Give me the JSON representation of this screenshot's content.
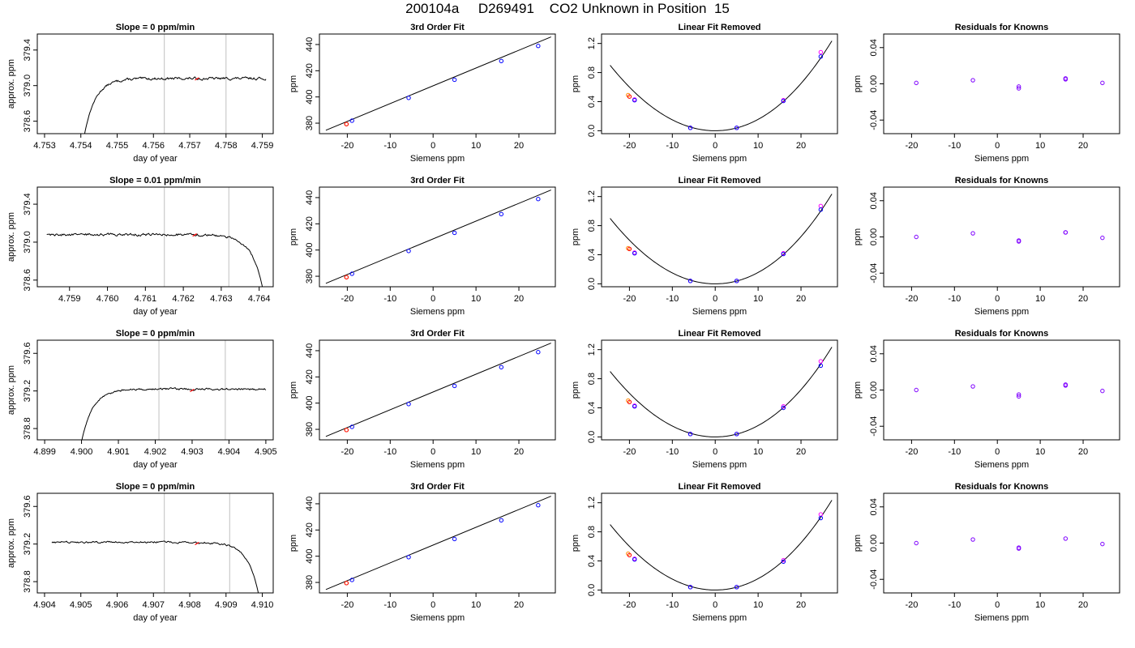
{
  "page_title": "200104a     D269491    CO2 Unknown in Position  15",
  "colors": {
    "trace": "#000000",
    "fit_line": "#000000",
    "vline": "#c0c0c0",
    "known_blue": "#0000ff",
    "known_magenta": "#ff00ff",
    "unknown_red": "#ff0000",
    "unknown_orange": "#ff8c00",
    "residual_purple": "#7f00ff"
  },
  "chart_data": [
    {
      "type": "line",
      "row": 1,
      "col": 1,
      "title": "Slope =  0  ppm/min",
      "xlabel": "day of year",
      "ylabel": "approx. ppm",
      "xlim": [
        4.7528,
        4.7593
      ],
      "ylim": [
        378.46,
        379.58
      ],
      "xticks": [
        4.753,
        4.754,
        4.755,
        4.756,
        4.757,
        4.758,
        4.759
      ],
      "xticklabels": [
        "4.753",
        "4.754",
        "4.755",
        "4.756",
        "4.757",
        "4.758",
        "4.759"
      ],
      "yticks": [
        378.6,
        379.0,
        379.4
      ],
      "yticklabels": [
        "378.6",
        "379.0",
        "379.4"
      ],
      "vlines": [
        4.7563,
        4.758
      ],
      "trace": {
        "mode": "rise",
        "x_start": 4.7541,
        "x_end": 4.7591,
        "y_start": 378.45,
        "level": 379.08,
        "jump": 0.0003,
        "noise": 0.016
      },
      "marker": {
        "x": 4.7572,
        "y": 379.08
      }
    },
    {
      "type": "scatter",
      "row": 1,
      "col": 2,
      "title": "3rd Order Fit",
      "xlabel": "Siemens ppm",
      "ylabel": "ppm",
      "xlim": [
        -26.5,
        28.5
      ],
      "ylim": [
        372,
        448
      ],
      "xticks": [
        -20,
        -10,
        0,
        10,
        20
      ],
      "xticklabels": [
        "-20",
        "-10",
        "0",
        "10",
        "20"
      ],
      "yticks": [
        380,
        400,
        420,
        440
      ],
      "yticklabels": [
        "380",
        "400",
        "420",
        "440"
      ],
      "line": {
        "x": [
          -25,
          27.5
        ],
        "y": [
          374.6,
          445.8
        ]
      },
      "knowns": {
        "x": [
          -18.9,
          -5.7,
          5.0,
          15.9,
          24.5
        ],
        "y": [
          381.9,
          399.3,
          413.1,
          427.4,
          438.9
        ]
      },
      "unknowns": {
        "x": [
          -20.2,
          -20.2
        ],
        "y": [
          379.3,
          379.3
        ]
      }
    },
    {
      "type": "scatter",
      "row": 1,
      "col": 3,
      "title": "Linear Fit Removed",
      "xlabel": "Siemens ppm",
      "ylabel": "ppm",
      "xlim": [
        -26.5,
        28.5
      ],
      "ylim": [
        -0.04,
        1.33
      ],
      "xticks": [
        -20,
        -10,
        0,
        10,
        20
      ],
      "xticklabels": [
        "-20",
        "-10",
        "0",
        "10",
        "20"
      ],
      "yticks": [
        0.0,
        0.4,
        0.8,
        1.2
      ],
      "yticklabels": [
        "0.0",
        "0.4",
        "0.8",
        "1.2"
      ],
      "curve": {
        "a": 0.0015,
        "b": 0.00156,
        "c": 0.0,
        "x0": -24.5,
        "x1": 27.2
      },
      "knowns_blue": {
        "x": [
          -18.8,
          -5.8,
          5.0,
          15.9,
          24.6
        ],
        "y": [
          0.42,
          0.04,
          0.04,
          0.41,
          1.02
        ]
      },
      "knowns_magenta": {
        "x": [
          -18.8,
          -5.8,
          5.0,
          15.9,
          24.6
        ],
        "y": [
          0.43,
          0.04,
          0.04,
          0.42,
          1.08
        ]
      },
      "unknowns": {
        "x": [
          -20.3,
          -20.0
        ],
        "y": [
          0.49,
          0.47
        ]
      }
    },
    {
      "type": "scatter",
      "row": 1,
      "col": 4,
      "title": "Residuals for Knowns",
      "xlabel": "Siemens ppm",
      "ylabel": "ppm",
      "xlim": [
        -26.5,
        28.5
      ],
      "ylim": [
        -0.055,
        0.055
      ],
      "xticks": [
        -20,
        -10,
        0,
        10,
        20
      ],
      "xticklabels": [
        "-20",
        "-10",
        "0",
        "10",
        "20"
      ],
      "yticks": [
        -0.04,
        0.0,
        0.04
      ],
      "yticklabels": [
        "-0.04",
        "0.00",
        "0.04"
      ],
      "points": {
        "x": [
          -18.9,
          -5.7,
          5.0,
          5.0,
          15.9,
          15.9,
          24.5
        ],
        "y": [
          0.001,
          0.004,
          -0.003,
          -0.005,
          0.005,
          0.006,
          0.001
        ]
      }
    },
    {
      "type": "line",
      "row": 2,
      "col": 1,
      "title": "Slope =  0.01  ppm/min",
      "xlabel": "day of year",
      "ylabel": "approx. ppm",
      "xlim": [
        4.75815,
        4.76437
      ],
      "ylim": [
        378.53,
        379.58
      ],
      "xticks": [
        4.759,
        4.76,
        4.761,
        4.762,
        4.763,
        4.764
      ],
      "xticklabels": [
        "4.759",
        "4.760",
        "4.761",
        "4.762",
        "4.763",
        "4.764"
      ],
      "yticks": [
        378.6,
        379.0,
        379.4
      ],
      "yticklabels": [
        "378.6",
        "379.0",
        "379.4"
      ],
      "vlines": [
        4.7615,
        4.7632
      ],
      "trace": {
        "mode": "fall",
        "x_start": 4.7584,
        "x_end": 4.7641,
        "y_end": 378.5,
        "level": 379.08,
        "jump": 0.0003,
        "noise": 0.016
      },
      "marker": {
        "x": 4.7623,
        "y": 379.08
      }
    },
    {
      "type": "scatter",
      "row": 2,
      "col": 2,
      "title": "3rd Order Fit",
      "xlabel": "Siemens ppm",
      "ylabel": "ppm",
      "xlim": [
        -26.5,
        28.5
      ],
      "ylim": [
        372,
        448
      ],
      "xticks": [
        -20,
        -10,
        0,
        10,
        20
      ],
      "xticklabels": [
        "-20",
        "-10",
        "0",
        "10",
        "20"
      ],
      "yticks": [
        380,
        400,
        420,
        440
      ],
      "yticklabels": [
        "380",
        "400",
        "420",
        "440"
      ],
      "line": {
        "x": [
          -25,
          27.5
        ],
        "y": [
          374.6,
          445.8
        ]
      },
      "knowns": {
        "x": [
          -18.9,
          -5.7,
          5.0,
          15.9,
          24.5
        ],
        "y": [
          381.9,
          399.3,
          413.1,
          427.4,
          438.9
        ]
      },
      "unknowns": {
        "x": [
          -20.2,
          -20.2
        ],
        "y": [
          379.3,
          379.3
        ]
      }
    },
    {
      "type": "scatter",
      "row": 2,
      "col": 3,
      "title": "Linear Fit Removed",
      "xlabel": "Siemens ppm",
      "ylabel": "ppm",
      "xlim": [
        -26.5,
        28.5
      ],
      "ylim": [
        -0.04,
        1.33
      ],
      "xticks": [
        -20,
        -10,
        0,
        10,
        20
      ],
      "xticklabels": [
        "-20",
        "-10",
        "0",
        "10",
        "20"
      ],
      "yticks": [
        0.0,
        0.4,
        0.8,
        1.2
      ],
      "yticklabels": [
        "0.0",
        "0.4",
        "0.8",
        "1.2"
      ],
      "curve": {
        "a": 0.0015,
        "b": 0.00156,
        "c": 0.0,
        "x0": -24.5,
        "x1": 27.2
      },
      "knowns_blue": {
        "x": [
          -18.8,
          -5.8,
          5.0,
          15.9,
          24.6
        ],
        "y": [
          0.42,
          0.04,
          0.04,
          0.41,
          1.02
        ]
      },
      "knowns_magenta": {
        "x": [
          -18.8,
          -5.8,
          5.0,
          15.9,
          24.6
        ],
        "y": [
          0.43,
          0.04,
          0.04,
          0.42,
          1.07
        ]
      },
      "unknowns": {
        "x": [
          -20.3,
          -20.0
        ],
        "y": [
          0.49,
          0.48
        ]
      }
    },
    {
      "type": "scatter",
      "row": 2,
      "col": 4,
      "title": "Residuals for Knowns",
      "xlabel": "Siemens ppm",
      "ylabel": "ppm",
      "xlim": [
        -26.5,
        28.5
      ],
      "ylim": [
        -0.055,
        0.055
      ],
      "xticks": [
        -20,
        -10,
        0,
        10,
        20
      ],
      "xticklabels": [
        "-20",
        "-10",
        "0",
        "10",
        "20"
      ],
      "yticks": [
        -0.04,
        0.0,
        0.04
      ],
      "yticklabels": [
        "-0.04",
        "0.00",
        "0.04"
      ],
      "points": {
        "x": [
          -18.9,
          -5.7,
          5.0,
          5.0,
          15.9,
          15.9,
          24.5
        ],
        "y": [
          0.0,
          0.004,
          -0.004,
          -0.005,
          0.005,
          0.005,
          -0.001
        ]
      }
    },
    {
      "type": "line",
      "row": 3,
      "col": 1,
      "title": "Slope =  0  ppm/min",
      "xlabel": "day of year",
      "ylabel": "approx. ppm",
      "xlim": [
        4.8988,
        4.9052
      ],
      "ylim": [
        378.68,
        379.74
      ],
      "xticks": [
        4.899,
        4.9,
        4.901,
        4.902,
        4.903,
        4.904,
        4.905
      ],
      "xticklabels": [
        "4.899",
        "4.900",
        "4.901",
        "4.902",
        "4.903",
        "4.904",
        "4.905"
      ],
      "yticks": [
        378.8,
        379.2,
        379.6
      ],
      "yticklabels": [
        "378.8",
        "379.2",
        "379.6"
      ],
      "vlines": [
        4.9021,
        4.9039
      ],
      "trace": {
        "mode": "rise",
        "x_start": 4.9,
        "x_end": 4.905,
        "y_start": 378.66,
        "level": 379.22,
        "jump": 0.0003,
        "noise": 0.012
      },
      "marker": {
        "x": 4.903,
        "y": 379.21
      }
    },
    {
      "type": "scatter",
      "row": 3,
      "col": 2,
      "title": "3rd Order Fit",
      "xlabel": "Siemens ppm",
      "ylabel": "ppm",
      "xlim": [
        -26.5,
        28.5
      ],
      "ylim": [
        372,
        448
      ],
      "xticks": [
        -20,
        -10,
        0,
        10,
        20
      ],
      "xticklabels": [
        "-20",
        "-10",
        "0",
        "10",
        "20"
      ],
      "yticks": [
        380,
        400,
        420,
        440
      ],
      "yticklabels": [
        "380",
        "400",
        "420",
        "440"
      ],
      "line": {
        "x": [
          -25,
          27.5
        ],
        "y": [
          374.6,
          445.8
        ]
      },
      "knowns": {
        "x": [
          -18.9,
          -5.7,
          5.0,
          15.9,
          24.5
        ],
        "y": [
          381.9,
          399.3,
          413.1,
          427.4,
          438.9
        ]
      },
      "unknowns": {
        "x": [
          -20.2,
          -20.2
        ],
        "y": [
          379.5,
          379.5
        ]
      }
    },
    {
      "type": "scatter",
      "row": 3,
      "col": 3,
      "title": "Linear Fit Removed",
      "xlabel": "Siemens ppm",
      "ylabel": "ppm",
      "xlim": [
        -26.5,
        28.5
      ],
      "ylim": [
        -0.04,
        1.33
      ],
      "xticks": [
        -20,
        -10,
        0,
        10,
        20
      ],
      "xticklabels": [
        "-20",
        "-10",
        "0",
        "10",
        "20"
      ],
      "yticks": [
        0.0,
        0.4,
        0.8,
        1.2
      ],
      "yticklabels": [
        "0.0",
        "0.4",
        "0.8",
        "1.2"
      ],
      "curve": {
        "a": 0.0015,
        "b": 0.00156,
        "c": 0.0,
        "x0": -24.5,
        "x1": 27.2
      },
      "knowns_blue": {
        "x": [
          -18.8,
          -5.8,
          5.0,
          15.9,
          24.6
        ],
        "y": [
          0.42,
          0.04,
          0.04,
          0.4,
          0.98
        ]
      },
      "knowns_magenta": {
        "x": [
          -18.8,
          -5.8,
          5.0,
          15.9,
          24.6
        ],
        "y": [
          0.43,
          0.04,
          0.04,
          0.42,
          1.04
        ]
      },
      "unknowns": {
        "x": [
          -20.3,
          -20.0
        ],
        "y": [
          0.5,
          0.48
        ]
      }
    },
    {
      "type": "scatter",
      "row": 3,
      "col": 4,
      "title": "Residuals for Knowns",
      "xlabel": "Siemens ppm",
      "ylabel": "ppm",
      "xlim": [
        -26.5,
        28.5
      ],
      "ylim": [
        -0.055,
        0.055
      ],
      "xticks": [
        -20,
        -10,
        0,
        10,
        20
      ],
      "xticklabels": [
        "-20",
        "-10",
        "0",
        "10",
        "20"
      ],
      "yticks": [
        -0.04,
        0.0,
        0.04
      ],
      "yticklabels": [
        "-0.04",
        "0.00",
        "0.04"
      ],
      "points": {
        "x": [
          -18.9,
          -5.7,
          5.0,
          5.0,
          15.9,
          15.9,
          24.5
        ],
        "y": [
          0.0,
          0.004,
          -0.005,
          -0.007,
          0.005,
          0.006,
          -0.001
        ]
      }
    },
    {
      "type": "line",
      "row": 4,
      "col": 1,
      "title": "Slope =  0  ppm/min",
      "xlabel": "day of year",
      "ylabel": "approx. ppm",
      "xlim": [
        4.9038,
        4.9103
      ],
      "ylim": [
        378.68,
        379.74
      ],
      "xticks": [
        4.904,
        4.905,
        4.906,
        4.907,
        4.908,
        4.909,
        4.91
      ],
      "xticklabels": [
        "4.904",
        "4.905",
        "4.906",
        "4.907",
        "4.908",
        "4.909",
        "4.910"
      ],
      "yticks": [
        378.8,
        379.2,
        379.6
      ],
      "yticklabels": [
        "378.8",
        "379.2",
        "379.6"
      ],
      "vlines": [
        4.9073,
        4.9091
      ],
      "trace": {
        "mode": "fall",
        "x_start": 4.9042,
        "x_end": 4.9099,
        "y_end": 378.66,
        "level": 379.22,
        "jump": 0.0003,
        "noise": 0.012
      },
      "marker": {
        "x": 4.9082,
        "y": 379.21
      }
    },
    {
      "type": "scatter",
      "row": 4,
      "col": 2,
      "title": "3rd Order Fit",
      "xlabel": "Siemens ppm",
      "ylabel": "ppm",
      "xlim": [
        -26.5,
        28.5
      ],
      "ylim": [
        372,
        448
      ],
      "xticks": [
        -20,
        -10,
        0,
        10,
        20
      ],
      "xticklabels": [
        "-20",
        "-10",
        "0",
        "10",
        "20"
      ],
      "yticks": [
        380,
        400,
        420,
        440
      ],
      "yticklabels": [
        "380",
        "400",
        "420",
        "440"
      ],
      "line": {
        "x": [
          -25,
          27.5
        ],
        "y": [
          374.6,
          445.8
        ]
      },
      "knowns": {
        "x": [
          -18.9,
          -5.7,
          5.0,
          15.9,
          24.5
        ],
        "y": [
          381.9,
          399.3,
          413.1,
          427.4,
          438.9
        ]
      },
      "unknowns": {
        "x": [
          -20.2,
          -20.2
        ],
        "y": [
          379.5,
          379.5
        ]
      }
    },
    {
      "type": "scatter",
      "row": 4,
      "col": 3,
      "title": "Linear Fit Removed",
      "xlabel": "Siemens ppm",
      "ylabel": "ppm",
      "xlim": [
        -26.5,
        28.5
      ],
      "ylim": [
        -0.04,
        1.33
      ],
      "xticks": [
        -20,
        -10,
        0,
        10,
        20
      ],
      "xticklabels": [
        "-20",
        "-10",
        "0",
        "10",
        "20"
      ],
      "yticks": [
        0.0,
        0.4,
        0.8,
        1.2
      ],
      "yticklabels": [
        "0.0",
        "0.4",
        "0.8",
        "1.2"
      ],
      "curve": {
        "a": 0.0015,
        "b": 0.00156,
        "c": 0.0,
        "x0": -24.5,
        "x1": 27.2
      },
      "knowns_blue": {
        "x": [
          -18.8,
          -5.8,
          5.0,
          15.9,
          24.6
        ],
        "y": [
          0.42,
          0.04,
          0.04,
          0.39,
          0.99
        ]
      },
      "knowns_magenta": {
        "x": [
          -18.8,
          -5.8,
          5.0,
          15.9,
          24.6
        ],
        "y": [
          0.43,
          0.04,
          0.04,
          0.41,
          1.04
        ]
      },
      "unknowns": {
        "x": [
          -20.3,
          -20.0
        ],
        "y": [
          0.5,
          0.48
        ]
      }
    },
    {
      "type": "scatter",
      "row": 4,
      "col": 4,
      "title": "Residuals for Knowns",
      "xlabel": "Siemens ppm",
      "ylabel": "ppm",
      "xlim": [
        -26.5,
        28.5
      ],
      "ylim": [
        -0.055,
        0.055
      ],
      "xticks": [
        -20,
        -10,
        0,
        10,
        20
      ],
      "xticklabels": [
        "-20",
        "-10",
        "0",
        "10",
        "20"
      ],
      "yticks": [
        -0.04,
        0.0,
        0.04
      ],
      "yticklabels": [
        "-0.04",
        "0.00",
        "0.04"
      ],
      "points": {
        "x": [
          -18.9,
          -5.7,
          5.0,
          5.0,
          15.9,
          24.5
        ],
        "y": [
          0.0,
          0.004,
          -0.005,
          -0.006,
          0.005,
          -0.001
        ]
      }
    }
  ]
}
